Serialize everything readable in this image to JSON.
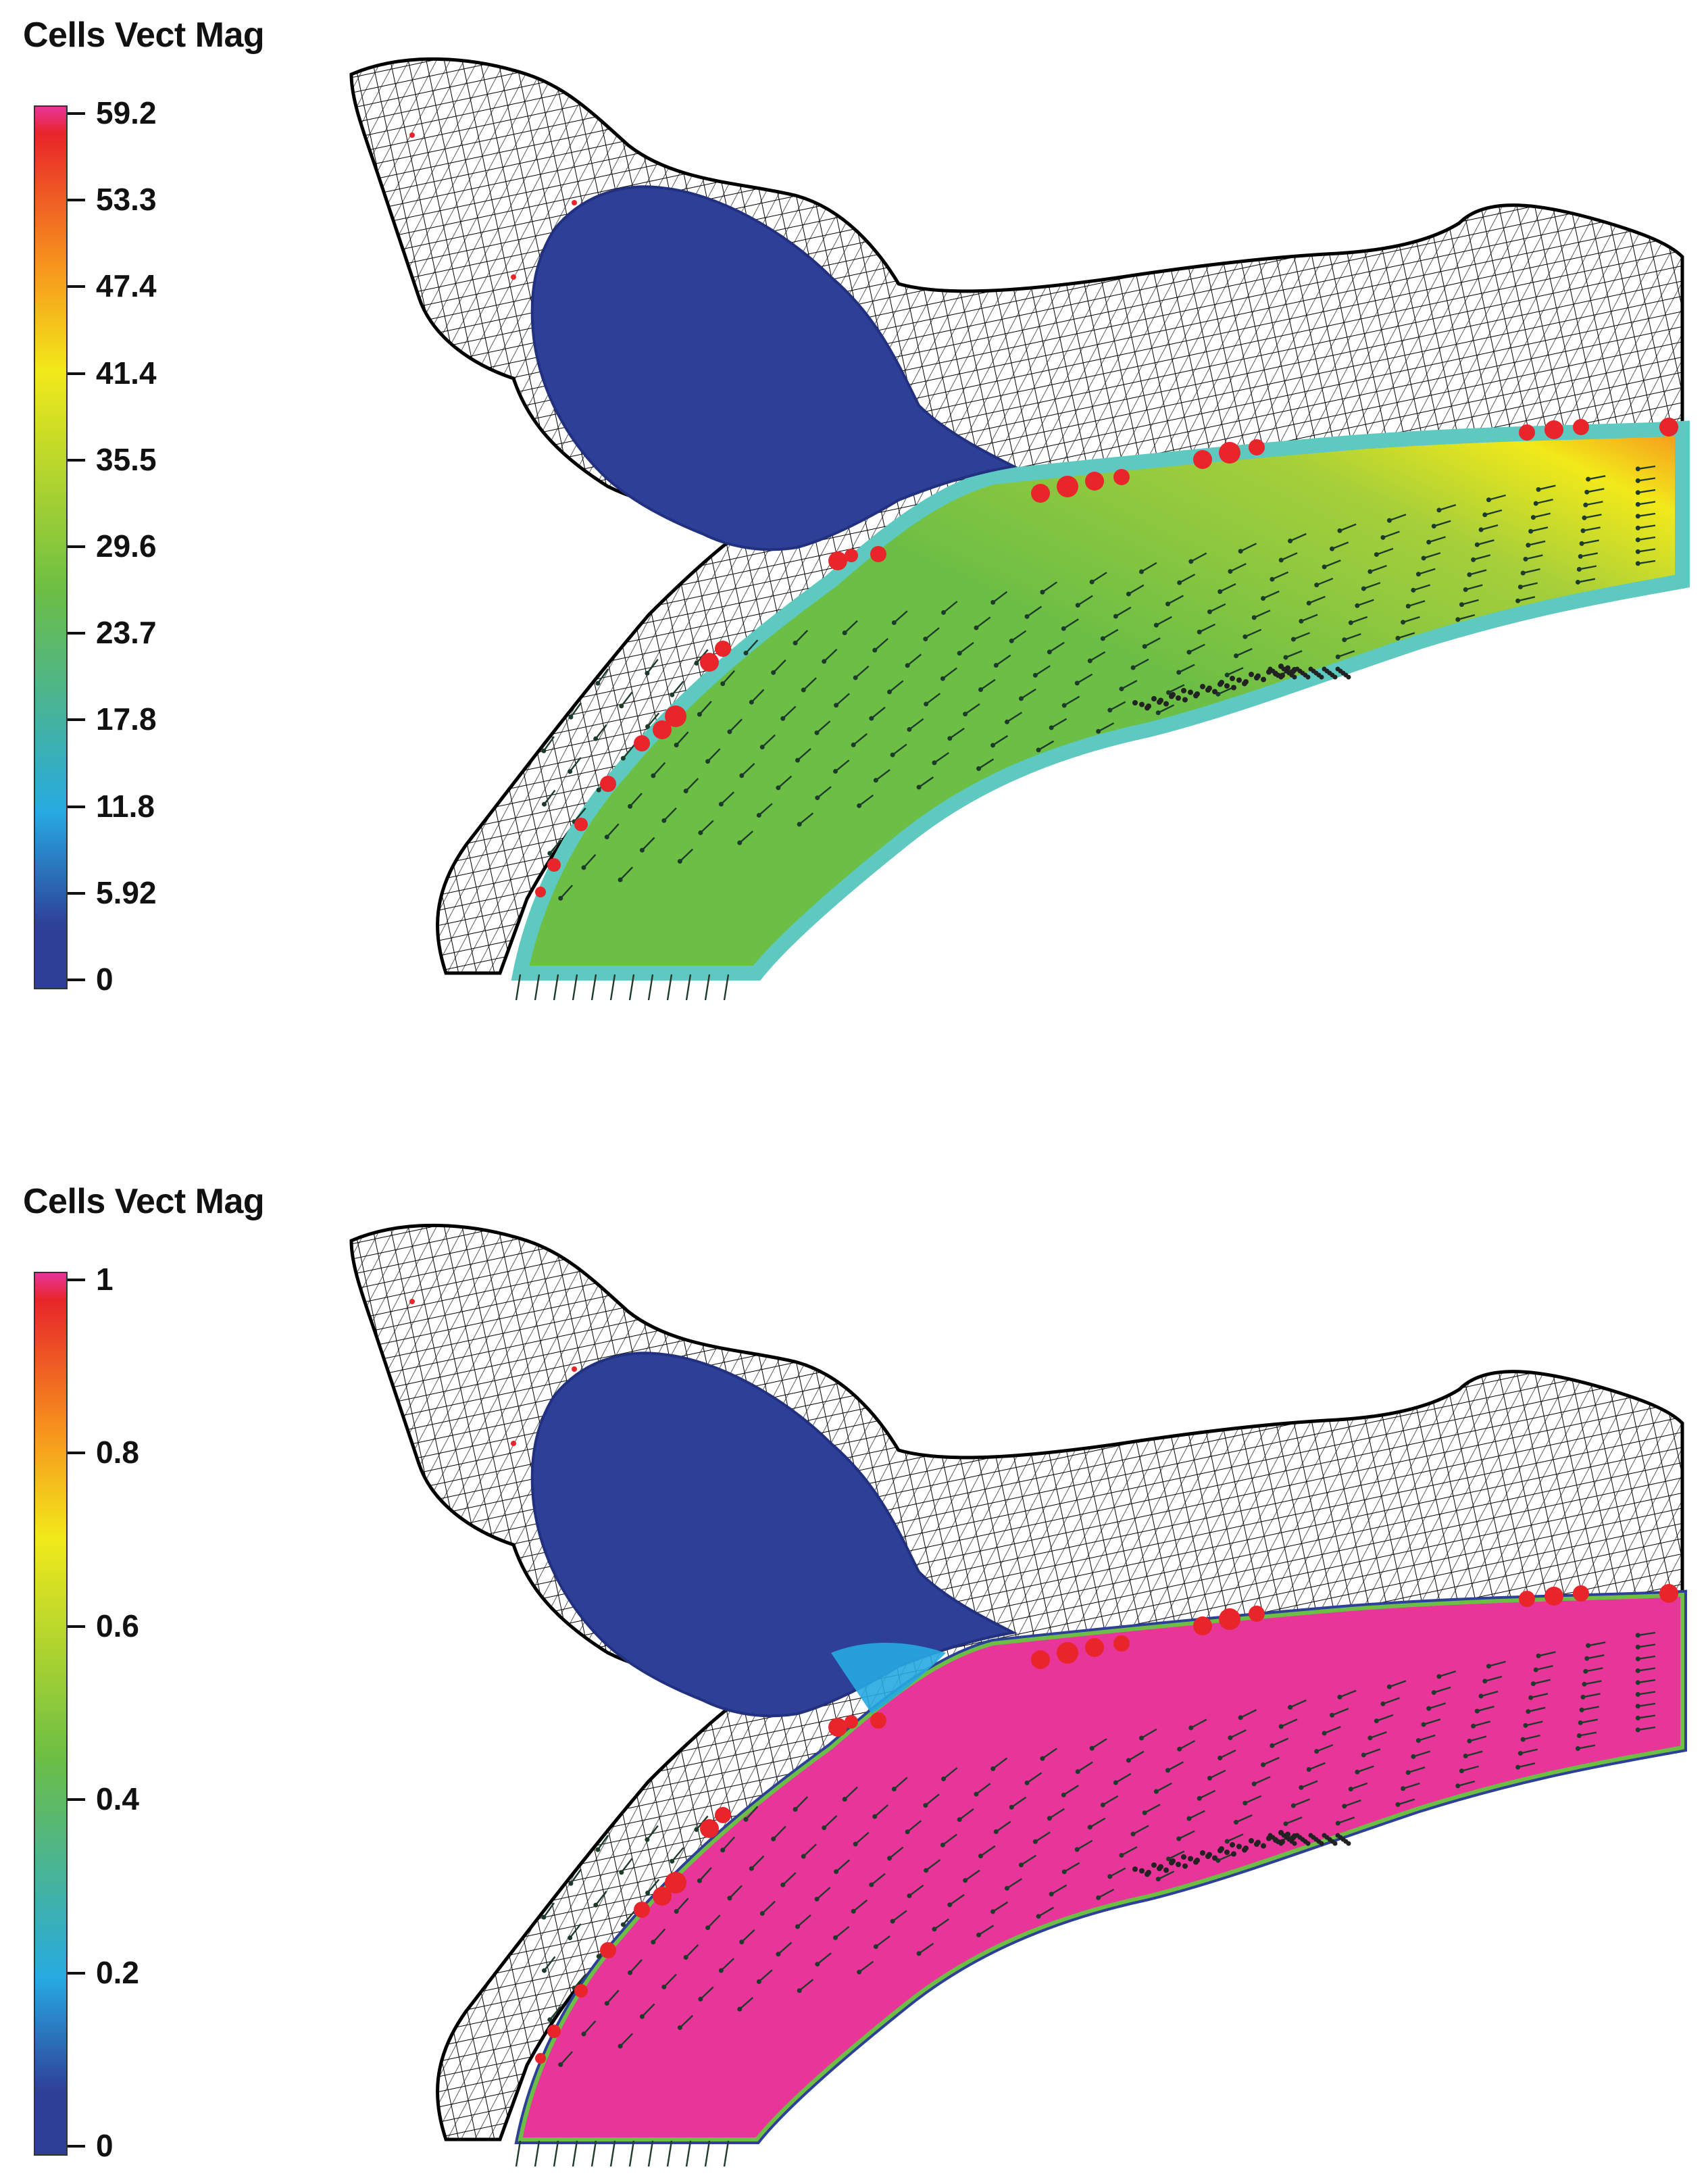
{
  "panels": [
    {
      "legend_title": "Cells Vect Mag",
      "ticks": [
        "59.2",
        "53.3",
        "47.4",
        "41.4",
        "35.5",
        "29.6",
        "23.7",
        "17.8",
        "11.8",
        "5.92",
        "0"
      ],
      "field": "velocity"
    },
    {
      "legend_title": "Cells Vect Mag",
      "ticks": [
        "1",
        "0.8",
        "0.6",
        "0.4",
        "0.2",
        "0"
      ],
      "field": "fraction"
    }
  ],
  "colors": {
    "max": "#e8359a",
    "high": "#e8252a",
    "orange": "#f7941d",
    "yellow": "#f2e91a",
    "green": "#6cbe45",
    "cyan": "#27aae1",
    "blue": "#2e3f98",
    "mesh": "#000000",
    "particles": "#e8252a"
  }
}
